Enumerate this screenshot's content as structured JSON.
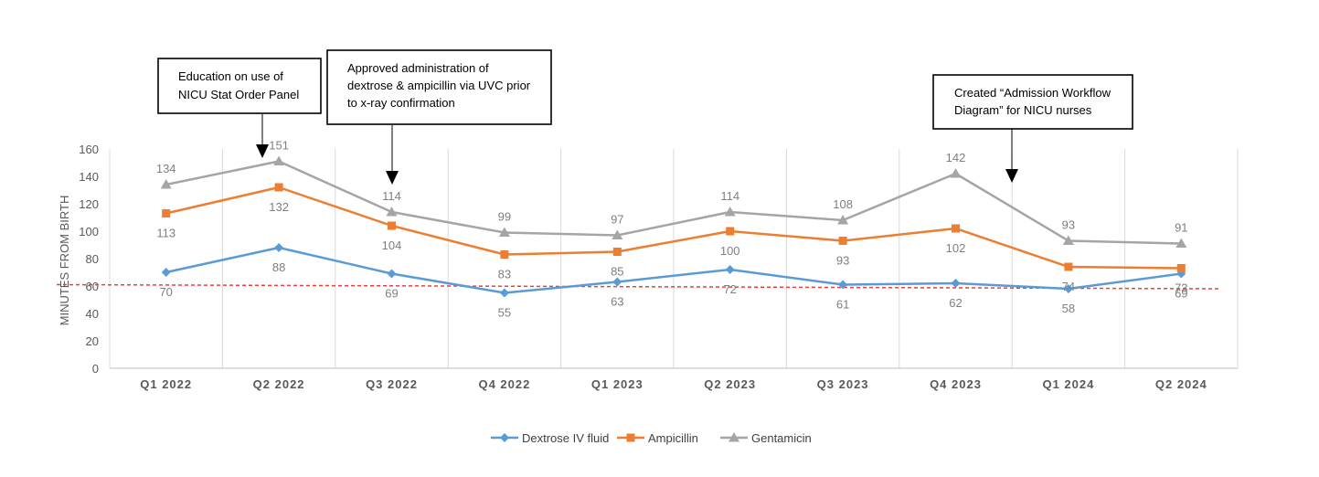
{
  "chart_data": {
    "type": "line",
    "title": "",
    "xlabel": "",
    "ylabel": "MINUTES FROM BIRTH",
    "ylim": [
      0,
      160
    ],
    "yticks": [
      0,
      20,
      40,
      60,
      80,
      100,
      120,
      140,
      160
    ],
    "categories": [
      "Q1 2022",
      "Q2 2022",
      "Q3 2022",
      "Q4 2022",
      "Q1 2023",
      "Q2 2023",
      "Q3 2023",
      "Q4 2023",
      "Q1 2024",
      "Q2 2024"
    ],
    "grid": "vertical",
    "legend_position": "bottom",
    "series": [
      {
        "name": "Dextrose IV fluid",
        "color": "#5b9bd5",
        "marker": "diamond",
        "values": [
          70,
          88,
          69,
          55,
          63,
          72,
          61,
          62,
          58,
          69
        ],
        "labels": [
          "70",
          "88",
          "69",
          "55",
          "63",
          "72",
          "61",
          "62",
          "58",
          "69"
        ]
      },
      {
        "name": "Ampicillin",
        "color": "#ed7d31",
        "marker": "square",
        "values": [
          113,
          132,
          104,
          83,
          85,
          100,
          93,
          102,
          74,
          73
        ],
        "labels": [
          "113",
          "132",
          "104",
          "83",
          "85",
          "100",
          "93",
          "102",
          "74",
          "73"
        ]
      },
      {
        "name": "Gentamicin",
        "color": "#a5a5a5",
        "marker": "triangle",
        "values": [
          134,
          151,
          114,
          99,
          97,
          114,
          108,
          142,
          93,
          91
        ],
        "labels": [
          "134",
          "151",
          "114",
          "99",
          "97",
          "114",
          "108",
          "142",
          "93",
          "91"
        ]
      }
    ],
    "target_line": {
      "color": "#e8413c",
      "style": "dashed",
      "start": 61,
      "end": 58
    },
    "annotations": [
      {
        "lines": [
          "Education on use of",
          "NICU Stat Order Panel"
        ],
        "category_index": 1
      },
      {
        "lines": [
          "Approved administration of",
          "dextrose & ampicillin via UVC prior",
          "to x-ray confirmation"
        ],
        "category_index": 2
      },
      {
        "lines": [
          "Created “Admission Workflow",
          "Diagram” for NICU nurses"
        ],
        "category_index": 8
      }
    ]
  }
}
